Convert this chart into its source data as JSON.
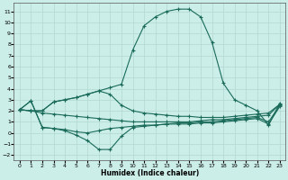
{
  "xlabel": "Humidex (Indice chaleur)",
  "ylabel": "",
  "bg_color": "#cceee8",
  "line_color": "#1a6b5a",
  "grid_color": "#b0d8d0",
  "xlim": [
    -0.5,
    23.5
  ],
  "ylim": [
    -2.5,
    11.8
  ],
  "xticks": [
    0,
    1,
    2,
    3,
    4,
    5,
    6,
    7,
    8,
    9,
    10,
    11,
    12,
    13,
    14,
    15,
    16,
    17,
    18,
    19,
    20,
    21,
    22,
    23
  ],
  "yticks": [
    -2,
    -1,
    0,
    1,
    2,
    3,
    4,
    5,
    6,
    7,
    8,
    9,
    10,
    11
  ],
  "line_peak_x": [
    0,
    1,
    2,
    3,
    4,
    5,
    6,
    7,
    8,
    9,
    10,
    11,
    12,
    13,
    14,
    15,
    16,
    17,
    18,
    19,
    20,
    21,
    22,
    23
  ],
  "line_peak_y": [
    2.1,
    2.0,
    2.0,
    2.8,
    3.0,
    3.2,
    3.5,
    3.8,
    4.1,
    4.4,
    7.5,
    9.7,
    10.5,
    11.0,
    11.2,
    11.2,
    10.5,
    8.2,
    4.5,
    3.0,
    2.5,
    2.0,
    0.7,
    2.7
  ],
  "line_upper_x": [
    0,
    1,
    2,
    3,
    4,
    5,
    6,
    7,
    8,
    9,
    10,
    11,
    12,
    13,
    14,
    15,
    16,
    17,
    18,
    19,
    20,
    21,
    22,
    23
  ],
  "line_upper_y": [
    2.1,
    2.0,
    2.0,
    2.8,
    3.0,
    3.2,
    3.5,
    3.8,
    3.5,
    2.5,
    2.0,
    1.8,
    1.7,
    1.6,
    1.5,
    1.5,
    1.4,
    1.4,
    1.4,
    1.5,
    1.6,
    1.7,
    1.8,
    2.6
  ],
  "line_mid_x": [
    0,
    1,
    2,
    3,
    4,
    5,
    6,
    7,
    8,
    9,
    10,
    11,
    12,
    13,
    14,
    15,
    16,
    17,
    18,
    19,
    20,
    21,
    22,
    23
  ],
  "line_mid_y": [
    2.1,
    2.0,
    1.8,
    1.7,
    1.6,
    1.5,
    1.4,
    1.3,
    1.2,
    1.1,
    1.0,
    1.0,
    1.0,
    1.0,
    1.0,
    1.0,
    1.1,
    1.2,
    1.2,
    1.3,
    1.4,
    1.5,
    1.6,
    2.6
  ],
  "line_lower_x": [
    0,
    1,
    2,
    3,
    4,
    5,
    6,
    7,
    8,
    9,
    10,
    11,
    12,
    13,
    14,
    15,
    16,
    17,
    18,
    19,
    20,
    21,
    22,
    23
  ],
  "line_lower_y": [
    2.1,
    2.9,
    0.5,
    0.4,
    0.2,
    -0.2,
    -0.7,
    -1.5,
    -1.5,
    -0.3,
    0.5,
    0.6,
    0.7,
    0.8,
    0.9,
    0.9,
    1.0,
    1.0,
    1.1,
    1.2,
    1.3,
    1.4,
    1.0,
    2.5
  ],
  "line_bot_x": [
    0,
    1,
    2,
    3,
    4,
    5,
    6,
    7,
    8,
    9,
    10,
    11,
    12,
    13,
    14,
    15,
    16,
    17,
    18,
    19,
    20,
    21,
    22,
    23
  ],
  "line_bot_y": [
    2.1,
    2.9,
    0.5,
    0.4,
    0.3,
    0.1,
    0.0,
    0.2,
    0.4,
    0.5,
    0.6,
    0.7,
    0.7,
    0.8,
    0.8,
    0.8,
    0.9,
    0.9,
    1.0,
    1.1,
    1.2,
    1.3,
    0.8,
    2.4
  ]
}
